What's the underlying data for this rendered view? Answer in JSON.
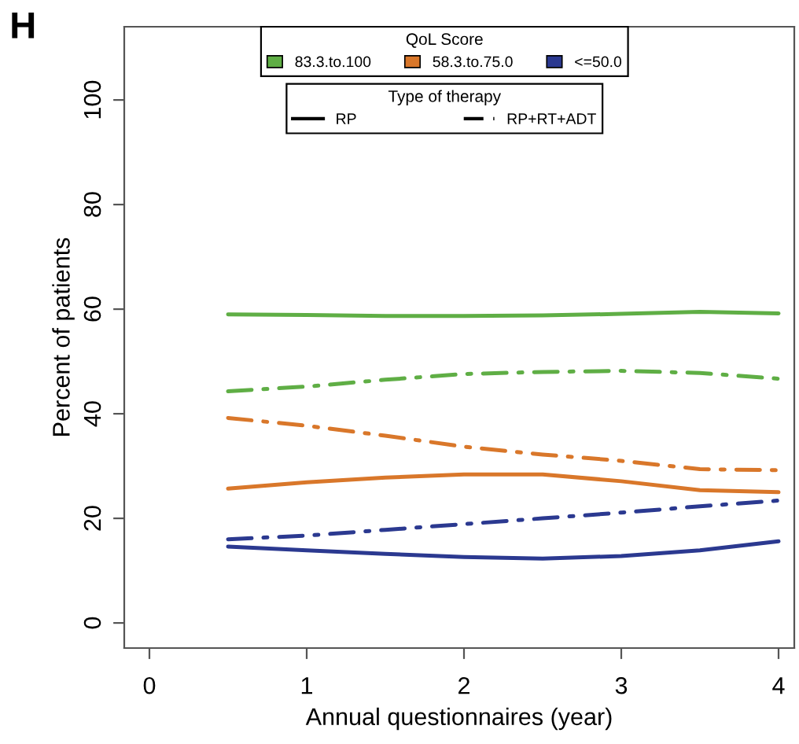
{
  "chart_data": {
    "type": "line",
    "title": "H",
    "xlabel": "Annual questionnaires (year)",
    "ylabel": "Percent of patients",
    "legend_title": [
      "QoL Score",
      "Type of therapy"
    ],
    "annotations": [
      "RP",
      "RP+RT+ADT"
    ],
    "x": [
      0.5,
      1,
      1.5,
      2,
      2.5,
      3,
      3.5,
      4
    ],
    "series": [
      {
        "name": "83.3.to.100",
        "color": "#5fae45",
        "line_style": "solid",
        "values": [
          59.0,
          58.9,
          58.7,
          58.7,
          58.8,
          59.1,
          59.5,
          59.2
        ]
      },
      {
        "color": "#5fae45",
        "line_style": "dashdot",
        "values": [
          44.3,
          45.2,
          46.5,
          47.6,
          48.0,
          48.2,
          47.8,
          46.7
        ]
      },
      {
        "name": "58.3.to.75.0",
        "color": "#d9772a",
        "line_style": "solid",
        "values": [
          25.7,
          26.9,
          27.8,
          28.4,
          28.4,
          27.1,
          25.4,
          25.0
        ]
      },
      {
        "color": "#d9772a",
        "line_style": "dashdot",
        "values": [
          39.2,
          37.7,
          35.8,
          33.7,
          32.2,
          31.0,
          29.4,
          29.2
        ]
      },
      {
        "name": "<=50.0",
        "color": "#2b3990",
        "line_style": "solid",
        "values": [
          14.6,
          13.9,
          13.2,
          12.6,
          12.3,
          12.8,
          13.9,
          15.6
        ]
      },
      {
        "color": "#2b3990",
        "line_style": "dashdot",
        "values": [
          16.0,
          16.7,
          17.8,
          18.9,
          20.0,
          21.1,
          22.3,
          23.4
        ]
      }
    ],
    "xlim": [
      -0.16,
      4.1
    ],
    "ylim": [
      -4.8,
      114
    ],
    "xticks": [
      0,
      1,
      2,
      3,
      4
    ],
    "yticks": [
      0,
      20,
      40,
      60,
      80,
      100
    ],
    "grid": false,
    "legend": "top",
    "marker": "none"
  }
}
